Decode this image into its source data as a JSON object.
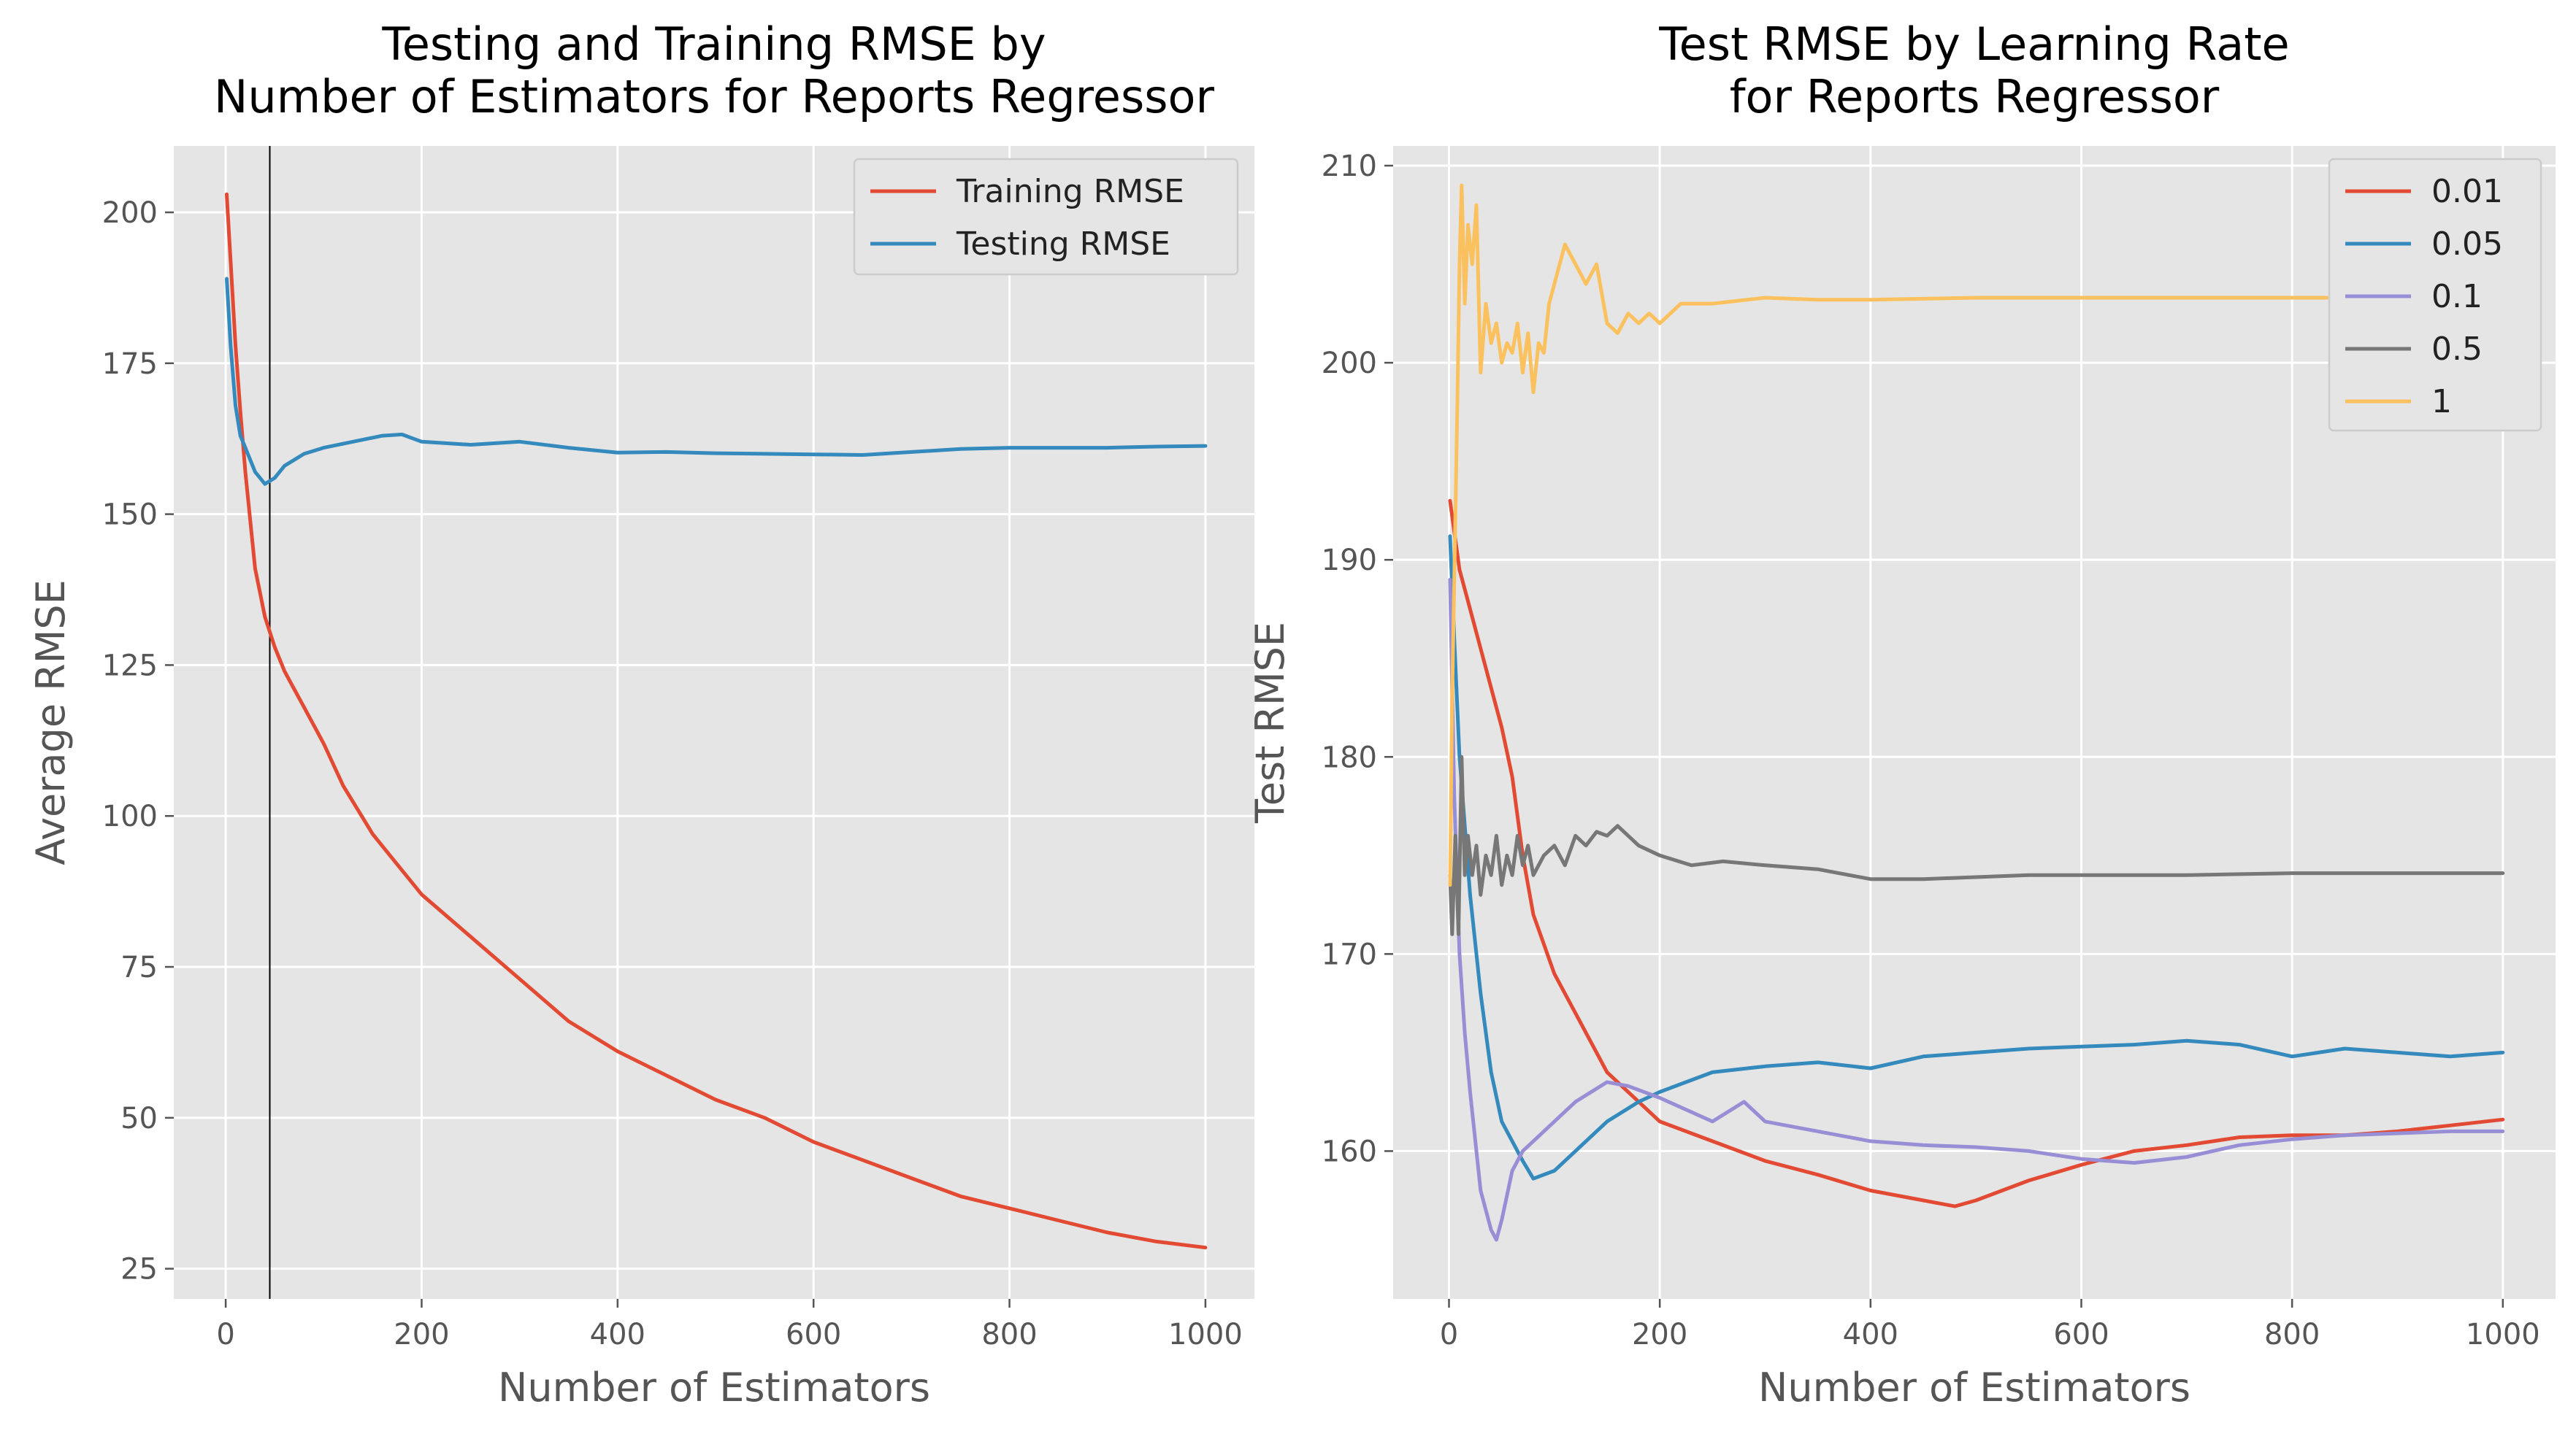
{
  "chart_data": [
    {
      "type": "line",
      "title": "Testing and Training RMSE by\nNumber of Estimators for Reports Regressor",
      "xlabel": "Number of Estimators",
      "ylabel": "Average RMSE",
      "xlim": [
        -53,
        1050
      ],
      "ylim": [
        20,
        211
      ],
      "xticks": [
        0,
        200,
        400,
        600,
        800,
        1000
      ],
      "xtick_labels": [
        "0",
        "200",
        "400",
        "600",
        "800",
        "1000"
      ],
      "yticks": [
        25,
        50,
        75,
        100,
        125,
        150,
        175,
        200
      ],
      "ytick_labels": [
        "25",
        "50",
        "75",
        "100",
        "125",
        "150",
        "175",
        "200"
      ],
      "grid": true,
      "legend_position": "top-right",
      "vline_x": 45,
      "series": [
        {
          "name": "Training RMSE",
          "color": "#E24A33",
          "x": [
            1,
            5,
            10,
            15,
            20,
            25,
            30,
            40,
            50,
            60,
            70,
            80,
            100,
            120,
            150,
            175,
            200,
            250,
            300,
            350,
            400,
            450,
            500,
            550,
            600,
            650,
            700,
            750,
            800,
            850,
            900,
            950,
            1000
          ],
          "values": [
            203,
            192,
            178,
            167,
            157,
            149,
            141,
            133,
            128,
            124,
            121,
            118,
            112,
            105,
            97,
            92,
            87,
            80,
            73,
            66,
            61,
            57,
            53,
            50,
            46,
            43,
            40,
            37,
            35,
            33,
            31,
            29.5,
            28.5
          ]
        },
        {
          "name": "Testing RMSE",
          "color": "#348ABD",
          "x": [
            1,
            5,
            10,
            15,
            20,
            30,
            40,
            45,
            50,
            60,
            80,
            100,
            130,
            160,
            180,
            200,
            250,
            300,
            350,
            400,
            450,
            500,
            550,
            600,
            650,
            700,
            750,
            800,
            850,
            900,
            950,
            1000
          ],
          "values": [
            189,
            178,
            168,
            163,
            161,
            157,
            155,
            155.5,
            156,
            158,
            160,
            161,
            162,
            163,
            163.2,
            162,
            161.5,
            162,
            161,
            160.2,
            160.3,
            160.1,
            160,
            159.9,
            159.8,
            160.3,
            160.8,
            161,
            161,
            161,
            161.2,
            161.3
          ]
        }
      ]
    },
    {
      "type": "line",
      "title": "Test RMSE by Learning Rate\nfor Reports Regressor",
      "xlabel": "Number of Estimators",
      "ylabel": "Test RMSE",
      "xlim": [
        -53,
        1050
      ],
      "ylim": [
        152.5,
        211
      ],
      "xticks": [
        0,
        200,
        400,
        600,
        800,
        1000
      ],
      "xtick_labels": [
        "0",
        "200",
        "400",
        "600",
        "800",
        "1000"
      ],
      "yticks": [
        160,
        170,
        180,
        190,
        200,
        210
      ],
      "ytick_labels": [
        "160",
        "170",
        "180",
        "190",
        "200",
        "210"
      ],
      "grid": true,
      "legend_position": "top-right",
      "series": [
        {
          "name": "0.01",
          "color": "#E24A33",
          "x": [
            1,
            10,
            20,
            30,
            40,
            50,
            60,
            70,
            80,
            90,
            100,
            120,
            150,
            200,
            250,
            300,
            350,
            400,
            450,
            480,
            500,
            550,
            600,
            650,
            700,
            750,
            800,
            850,
            900,
            950,
            1000
          ],
          "values": [
            193,
            189.5,
            187.5,
            185.5,
            183.5,
            181.5,
            179,
            175,
            172,
            170.5,
            169,
            167,
            164,
            161.5,
            160.5,
            159.5,
            158.8,
            158,
            157.5,
            157.2,
            157.5,
            158.5,
            159.3,
            160,
            160.3,
            160.7,
            160.8,
            160.8,
            161,
            161.3,
            161.6
          ]
        },
        {
          "name": "0.05",
          "color": "#348ABD",
          "x": [
            1,
            5,
            10,
            20,
            30,
            40,
            50,
            60,
            70,
            80,
            100,
            120,
            150,
            180,
            200,
            250,
            300,
            350,
            400,
            450,
            500,
            550,
            600,
            650,
            700,
            750,
            800,
            850,
            900,
            950,
            1000
          ],
          "values": [
            191.2,
            186,
            180,
            173,
            168,
            164,
            161.5,
            160.5,
            159.5,
            158.6,
            159,
            160,
            161.5,
            162.5,
            163,
            164,
            164.3,
            164.5,
            164.2,
            164.8,
            165,
            165.2,
            165.3,
            165.4,
            165.6,
            165.4,
            164.8,
            165.2,
            165,
            164.8,
            165
          ]
        },
        {
          "name": "0.1",
          "color": "#988ED5",
          "x": [
            1,
            5,
            10,
            15,
            20,
            30,
            40,
            45,
            50,
            60,
            70,
            80,
            100,
            120,
            150,
            170,
            200,
            250,
            280,
            300,
            350,
            400,
            450,
            500,
            550,
            600,
            650,
            700,
            750,
            800,
            850,
            900,
            950,
            1000
          ],
          "values": [
            189,
            178,
            170,
            166,
            163,
            158,
            156,
            155.5,
            156.5,
            159,
            160,
            160.5,
            161.5,
            162.5,
            163.5,
            163.3,
            162.7,
            161.5,
            162.5,
            161.5,
            161,
            160.5,
            160.3,
            160.2,
            160,
            159.6,
            159.4,
            159.7,
            160.3,
            160.6,
            160.8,
            160.9,
            161,
            161
          ]
        },
        {
          "name": "0.5",
          "color": "#777777",
          "x": [
            1,
            3,
            6,
            9,
            12,
            15,
            18,
            22,
            26,
            30,
            35,
            40,
            45,
            50,
            55,
            60,
            65,
            70,
            75,
            80,
            90,
            100,
            110,
            120,
            130,
            140,
            150,
            160,
            170,
            180,
            200,
            230,
            260,
            300,
            350,
            400,
            450,
            500,
            550,
            600,
            700,
            800,
            900,
            1000
          ],
          "values": [
            174,
            171,
            176,
            171,
            180,
            174,
            176,
            174,
            175.5,
            173,
            175,
            174,
            176,
            173.5,
            175,
            174,
            176,
            174.5,
            175.5,
            174,
            175,
            175.5,
            174.5,
            176,
            175.5,
            176.2,
            176,
            176.5,
            176,
            175.5,
            175,
            174.5,
            174.7,
            174.5,
            174.3,
            173.8,
            173.8,
            173.9,
            174,
            174,
            174,
            174.1,
            174.1,
            174.1
          ]
        },
        {
          "name": "1",
          "color": "#FBC15E",
          "x": [
            1,
            3,
            5,
            8,
            10,
            12,
            15,
            18,
            22,
            26,
            30,
            35,
            40,
            45,
            50,
            55,
            60,
            65,
            70,
            75,
            80,
            85,
            90,
            95,
            100,
            110,
            120,
            130,
            140,
            150,
            160,
            170,
            180,
            190,
            200,
            220,
            250,
            300,
            350,
            400,
            500,
            600,
            700,
            800,
            900,
            1000
          ],
          "values": [
            173.5,
            183,
            189,
            198,
            205,
            209,
            203,
            207,
            205,
            208,
            199.5,
            203,
            201,
            202,
            200,
            201,
            200.5,
            202,
            199.5,
            201.5,
            198.5,
            201,
            200.5,
            203,
            204,
            206,
            205,
            204,
            205,
            202,
            201.5,
            202.5,
            202,
            202.5,
            202,
            203,
            203,
            203.3,
            203.2,
            203.2,
            203.3,
            203.3,
            203.3,
            203.3,
            203.3,
            203.3
          ]
        }
      ]
    }
  ]
}
